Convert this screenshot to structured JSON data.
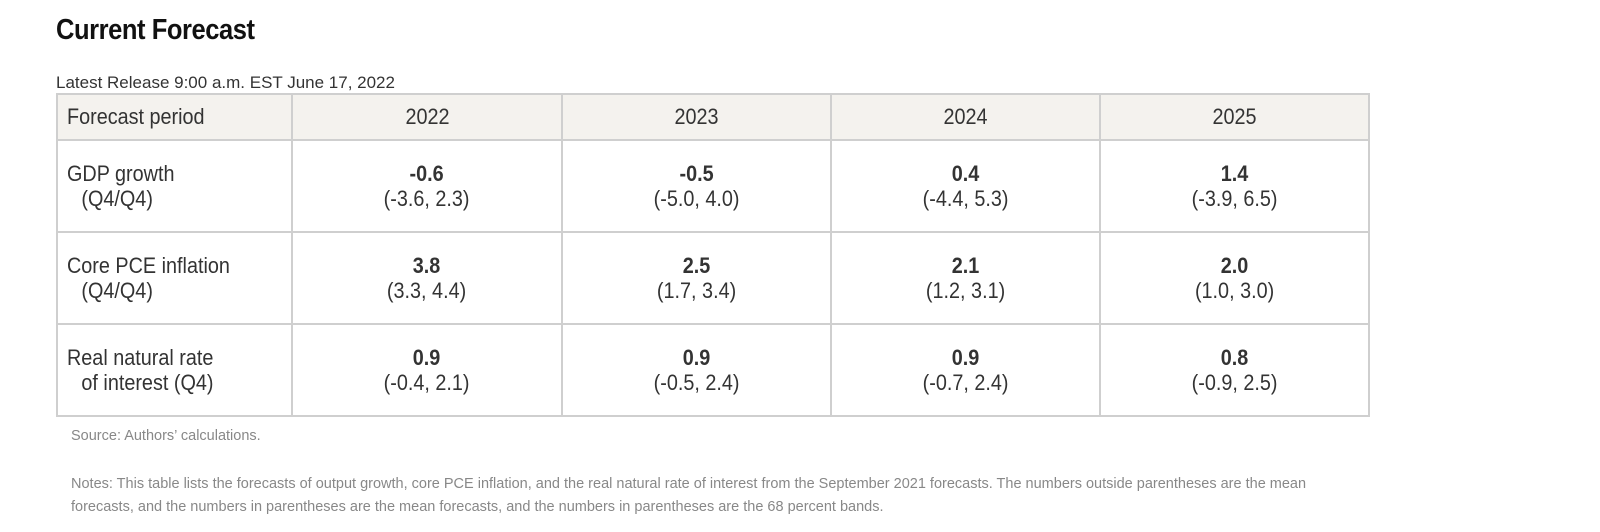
{
  "title": "Current Forecast",
  "release": "Latest Release 9:00 a.m. EST June 17, 2022",
  "table": {
    "header": {
      "period_label": "Forecast period",
      "years": [
        "2022",
        "2023",
        "2024",
        "2025"
      ]
    },
    "rows": [
      {
        "label_line1": "GDP growth",
        "label_line2": "(Q4/Q4)",
        "cells": [
          {
            "mean": "-0.6",
            "band": "(-3.6, 2.3)"
          },
          {
            "mean": "-0.5",
            "band": "(-5.0, 4.0)"
          },
          {
            "mean": "0.4",
            "band": "(-4.4, 5.3)"
          },
          {
            "mean": "1.4",
            "band": "(-3.9, 6.5)"
          }
        ]
      },
      {
        "label_line1": "Core PCE inflation",
        "label_line2": "(Q4/Q4)",
        "cells": [
          {
            "mean": "3.8",
            "band": "(3.3, 4.4)"
          },
          {
            "mean": "2.5",
            "band": "(1.7, 3.4)"
          },
          {
            "mean": "2.1",
            "band": "(1.2, 3.1)"
          },
          {
            "mean": "2.0",
            "band": "(1.0, 3.0)"
          }
        ]
      },
      {
        "label_line1": "Real natural rate",
        "label_line2": "of interest (Q4)",
        "cells": [
          {
            "mean": "0.9",
            "band": "(-0.4, 2.1)"
          },
          {
            "mean": "0.9",
            "band": "(-0.5, 2.4)"
          },
          {
            "mean": "0.9",
            "band": "(-0.7, 2.4)"
          },
          {
            "mean": "0.8",
            "band": "(-0.9, 2.5)"
          }
        ]
      }
    ]
  },
  "source": "Source: Authors’ calculations.",
  "notes": "Notes: This table lists the forecasts of output growth, core PCE inflation, and the real natural rate of interest from the September 2021 forecasts. The numbers outside parentheses are the mean forecasts, and the numbers in parentheses are the mean forecasts, and the numbers in parentheses are the 68 percent bands."
}
